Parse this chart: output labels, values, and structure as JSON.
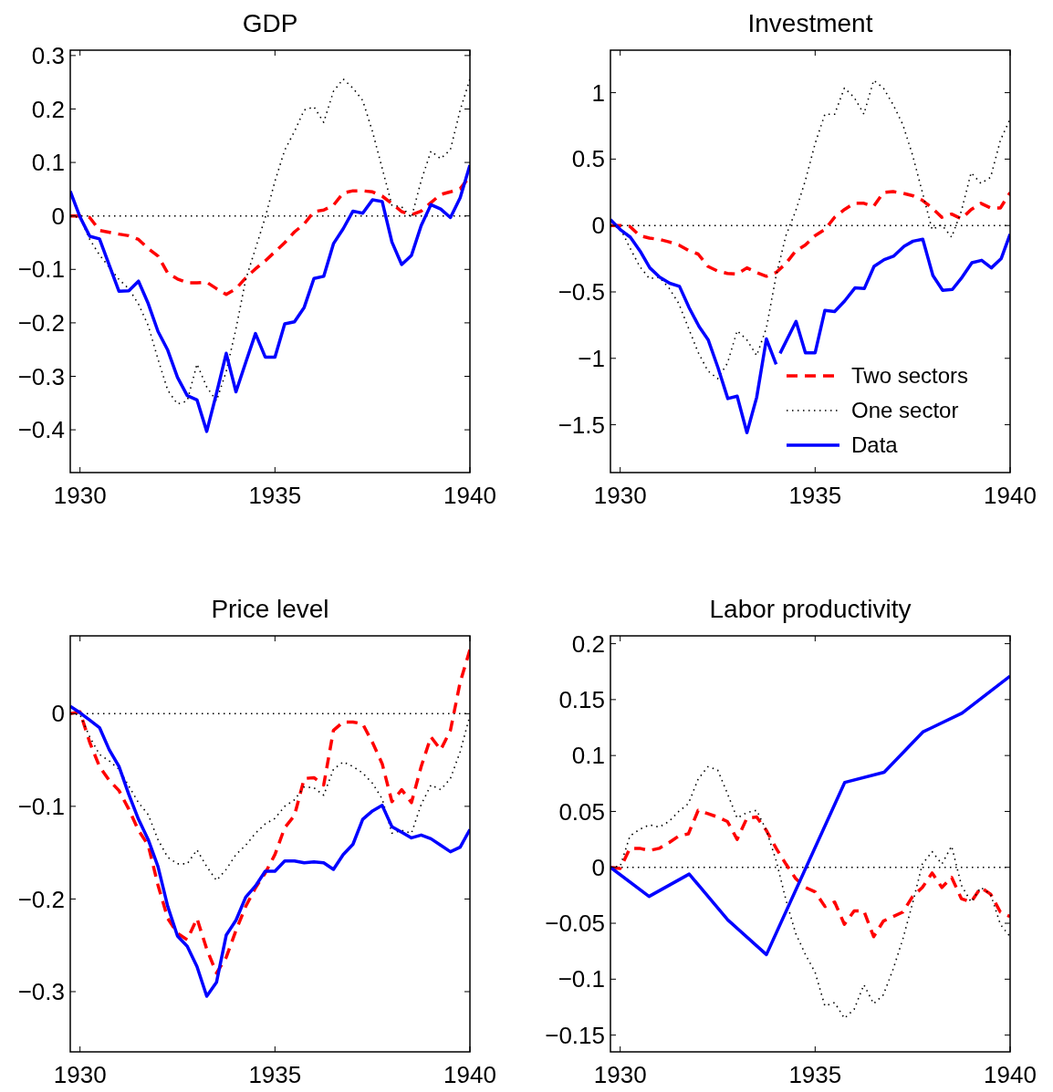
{
  "chart_data": [
    {
      "type": "line",
      "title": "GDP",
      "x": [
        1929.75,
        1930,
        1930.25,
        1930.5,
        1931,
        1931.25,
        1931.5,
        1931.75,
        1932,
        1932.25,
        1932.5,
        1932.75,
        1933,
        1933.25,
        1933.5,
        1933.75,
        1934,
        1934.25,
        1934.5,
        1934.75,
        1935,
        1935.25,
        1935.5,
        1935.75,
        1936,
        1936.25,
        1936.5,
        1936.75,
        1937,
        1937.25,
        1937.5,
        1937.75,
        1938,
        1938.25,
        1938.5,
        1938.75,
        1939,
        1939.25,
        1939.5,
        1939.75,
        1940
      ],
      "xlim": [
        1929.75,
        1940
      ],
      "xticks": [
        1930,
        1935,
        1940
      ],
      "ylim": [
        -0.48,
        0.31
      ],
      "yticks": [
        -0.4,
        -0.3,
        -0.2,
        -0.1,
        0,
        0.1,
        0.2,
        0.3
      ],
      "legend": false,
      "ref_lines": [
        {
          "axis": "y",
          "value": 0,
          "color": "#000000",
          "line_style": "dotted"
        }
      ],
      "series": [
        {
          "color": "#ff0000",
          "line_style": "dashed",
          "values": [
            0,
            0,
            -0.003,
            -0.027,
            -0.034,
            -0.037,
            -0.044,
            -0.061,
            -0.075,
            -0.107,
            -0.118,
            -0.125,
            -0.125,
            -0.124,
            -0.136,
            -0.147,
            -0.136,
            -0.116,
            -0.099,
            -0.084,
            -0.067,
            -0.05,
            -0.03,
            -0.015,
            0.008,
            0.011,
            0.02,
            0.043,
            0.047,
            0.047,
            0.045,
            0.037,
            0.023,
            0.008,
            0.002,
            0.009,
            0.025,
            0.04,
            0.045,
            0.051,
            0.074
          ]
        },
        {
          "color": "#000000",
          "line_style": "dotted",
          "values": [
            0,
            -0.003,
            -0.044,
            -0.073,
            -0.119,
            -0.136,
            -0.165,
            -0.205,
            -0.268,
            -0.326,
            -0.352,
            -0.346,
            -0.277,
            -0.32,
            -0.346,
            -0.291,
            -0.211,
            -0.119,
            -0.061,
            -0.003,
            0.065,
            0.123,
            0.158,
            0.198,
            0.204,
            0.175,
            0.233,
            0.256,
            0.239,
            0.216,
            0.158,
            0.089,
            0.02,
            0.017,
            -0.003,
            0.066,
            0.121,
            0.107,
            0.124,
            0.198,
            0.256
          ]
        },
        {
          "color": "#0000ff",
          "line_style": "solid",
          "values": [
            0.046,
            -0.002,
            -0.038,
            -0.043,
            -0.141,
            -0.14,
            -0.122,
            -0.164,
            -0.216,
            -0.251,
            -0.302,
            -0.336,
            -0.344,
            -0.403,
            -0.332,
            -0.257,
            -0.329,
            -0.274,
            -0.22,
            -0.264,
            -0.264,
            -0.202,
            -0.198,
            -0.171,
            -0.117,
            -0.113,
            -0.052,
            -0.024,
            0.009,
            0.005,
            0.03,
            0.027,
            -0.049,
            -0.091,
            -0.074,
            -0.018,
            0.021,
            0.013,
            -0.003,
            0.034,
            0.095
          ]
        }
      ]
    },
    {
      "type": "line",
      "title": "Investment",
      "x": [
        1929.75,
        1930,
        1930.25,
        1930.5,
        1930.75,
        1931,
        1931.25,
        1931.5,
        1931.75,
        1932,
        1932.25,
        1932.5,
        1932.75,
        1933,
        1933.25,
        1933.5,
        1933.75,
        1934,
        1934.25,
        1934.5,
        1934.75,
        1935,
        1935.25,
        1935.5,
        1935.75,
        1936,
        1936.25,
        1936.5,
        1936.75,
        1937,
        1937.25,
        1937.5,
        1937.75,
        1938,
        1938.25,
        1938.5,
        1938.75,
        1939,
        1939.25,
        1939.5,
        1939.75,
        1940
      ],
      "xlim": [
        1929.75,
        1940
      ],
      "xticks": [
        1930,
        1935,
        1940
      ],
      "ylim": [
        -1.86,
        1.32
      ],
      "yticks": [
        -1.5,
        -1,
        -0.5,
        0,
        0.5,
        1
      ],
      "legend": "bottom right",
      "ref_lines": [
        {
          "axis": "y",
          "value": 0,
          "color": "#000000",
          "line_style": "dotted"
        }
      ],
      "series": [
        {
          "name": "Two sectors",
          "color": "#ff0000",
          "line_style": "dashed",
          "values": [
            0,
            0,
            -0.007,
            -0.076,
            -0.095,
            -0.104,
            -0.123,
            -0.146,
            -0.188,
            -0.215,
            -0.308,
            -0.343,
            -0.361,
            -0.366,
            -0.319,
            -0.354,
            -0.382,
            -0.354,
            -0.285,
            -0.192,
            -0.146,
            -0.076,
            -0.03,
            0.062,
            0.12,
            0.167,
            0.167,
            0.144,
            0.248,
            0.255,
            0.243,
            0.225,
            0.19,
            0.132,
            0.062,
            0.086,
            0.051,
            0.12,
            0.167,
            0.132,
            0.132,
            0.248
          ]
        },
        {
          "name": "One sector",
          "color": "#000000",
          "line_style": "dotted",
          "values": [
            0,
            -0.019,
            -0.169,
            -0.308,
            -0.4,
            -0.389,
            -0.47,
            -0.586,
            -0.771,
            -0.956,
            -1.095,
            -1.153,
            -1.037,
            -0.792,
            -0.861,
            -0.979,
            -0.771,
            -0.377,
            -0.076,
            0.109,
            0.34,
            0.618,
            0.838,
            0.838,
            1.035,
            0.965,
            0.838,
            1.093,
            1.035,
            0.91,
            0.759,
            0.528,
            0.25,
            -0.03,
            0.005,
            -0.088,
            0.109,
            0.398,
            0.317,
            0.363,
            0.641,
            0.803
          ]
        },
        {
          "name": "Data",
          "color": "#0000ff",
          "line_style": "solid",
          "x": [
            1929.75,
            1930,
            1930.26,
            1930.51,
            1930.76,
            1931.01,
            1931.27,
            1931.52,
            1931.77,
            1932.02,
            1932.26,
            1932.51,
            1932.76,
            1933,
            1933.25,
            1933.5,
            1933.75,
            1934,
            1934.05,
            1934.1,
            1934.51,
            1934.75,
            1935,
            1935.25,
            1935.5,
            1935.76,
            1936.02,
            1936.26,
            1936.51,
            1936.77,
            1937.02,
            1937.28,
            1937.51,
            1937.76,
            1938.02,
            1938.27,
            1938.52,
            1938.77,
            1939.02,
            1939.27,
            1939.52,
            1939.77,
            1940
          ],
          "values": [
            0.044,
            -0.03,
            -0.088,
            -0.192,
            -0.319,
            -0.389,
            -0.435,
            -0.458,
            -0.62,
            -0.759,
            -0.863,
            -1.072,
            -1.303,
            -1.285,
            -1.56,
            -1.294,
            -0.854,
            -1.046,
            null,
            -0.963,
            -0.722,
            -0.958,
            -0.958,
            -0.639,
            -0.648,
            -0.567,
            -0.47,
            -0.475,
            -0.308,
            -0.257,
            -0.229,
            -0.157,
            -0.118,
            -0.104,
            -0.377,
            -0.488,
            -0.481,
            -0.389,
            -0.28,
            -0.262,
            -0.319,
            -0.25,
            -0.065
          ]
        }
      ]
    },
    {
      "type": "line",
      "title": "Price level",
      "x": [
        1929.75,
        1930,
        1930.25,
        1930.5,
        1930.75,
        1931,
        1931.25,
        1931.5,
        1931.75,
        1932,
        1932.25,
        1932.5,
        1932.75,
        1933,
        1933.25,
        1933.5,
        1933.75,
        1934,
        1934.25,
        1934.5,
        1934.75,
        1935,
        1935.25,
        1935.5,
        1935.75,
        1936,
        1936.25,
        1936.5,
        1936.75,
        1937,
        1937.25,
        1937.5,
        1937.75,
        1938,
        1938.25,
        1938.5,
        1938.75,
        1939,
        1939.25,
        1939.5,
        1939.75,
        1940
      ],
      "xlim": [
        1929.75,
        1940
      ],
      "xticks": [
        1930,
        1935,
        1940
      ],
      "ylim": [
        -0.365,
        0.084
      ],
      "yticks": [
        -0.3,
        -0.2,
        -0.1,
        0
      ],
      "legend": false,
      "ref_lines": [
        {
          "axis": "y",
          "value": 0,
          "color": "#000000",
          "line_style": "dotted"
        }
      ],
      "series": [
        {
          "color": "#ff0000",
          "line_style": "dashed",
          "values": [
            0,
            0.002,
            -0.031,
            -0.057,
            -0.072,
            -0.083,
            -0.103,
            -0.126,
            -0.142,
            -0.185,
            -0.221,
            -0.237,
            -0.244,
            -0.221,
            -0.254,
            -0.28,
            -0.263,
            -0.234,
            -0.208,
            -0.188,
            -0.172,
            -0.152,
            -0.123,
            -0.11,
            -0.07,
            -0.069,
            -0.077,
            -0.018,
            -0.009,
            -0.009,
            -0.011,
            -0.031,
            -0.054,
            -0.095,
            -0.082,
            -0.096,
            -0.057,
            -0.025,
            -0.039,
            -0.018,
            0.034,
            0.069
          ]
        },
        {
          "color": "#000000",
          "line_style": "dotted",
          "values": [
            0,
            -0.001,
            -0.025,
            -0.044,
            -0.051,
            -0.06,
            -0.078,
            -0.096,
            -0.109,
            -0.136,
            -0.155,
            -0.162,
            -0.162,
            -0.147,
            -0.165,
            -0.18,
            -0.168,
            -0.152,
            -0.142,
            -0.129,
            -0.119,
            -0.113,
            -0.1,
            -0.093,
            -0.079,
            -0.08,
            -0.088,
            -0.06,
            -0.052,
            -0.057,
            -0.064,
            -0.075,
            -0.092,
            -0.129,
            -0.126,
            -0.129,
            -0.098,
            -0.077,
            -0.082,
            -0.07,
            -0.041,
            -0.002
          ]
        },
        {
          "color": "#0000ff",
          "line_style": "solid",
          "values": [
            0.008,
            0.001,
            -0.007,
            -0.015,
            -0.039,
            -0.057,
            -0.087,
            -0.114,
            -0.136,
            -0.165,
            -0.208,
            -0.24,
            -0.251,
            -0.273,
            -0.305,
            -0.29,
            -0.239,
            -0.223,
            -0.198,
            -0.186,
            -0.17,
            -0.17,
            -0.159,
            -0.159,
            -0.161,
            -0.16,
            -0.161,
            -0.168,
            -0.152,
            -0.141,
            -0.114,
            -0.105,
            -0.099,
            -0.122,
            -0.128,
            -0.134,
            -0.131,
            -0.135,
            -0.142,
            -0.149,
            -0.144,
            -0.125
          ]
        }
      ]
    },
    {
      "type": "line",
      "title": "Labor productivity",
      "x": [
        1929.75,
        1930,
        1930.25,
        1930.5,
        1930.75,
        1931,
        1931.25,
        1931.5,
        1931.75,
        1932,
        1932.25,
        1932.5,
        1932.75,
        1933,
        1933.25,
        1933.5,
        1933.75,
        1934,
        1934.25,
        1934.5,
        1934.75,
        1935,
        1935.25,
        1935.5,
        1935.75,
        1936,
        1936.25,
        1936.5,
        1936.75,
        1937,
        1937.25,
        1937.5,
        1937.75,
        1938,
        1938.25,
        1938.5,
        1938.75,
        1939,
        1939.25,
        1939.5,
        1939.75,
        1940
      ],
      "xlim": [
        1929.75,
        1940
      ],
      "xticks": [
        1930,
        1935,
        1940
      ],
      "ylim": [
        -0.165,
        0.207
      ],
      "yticks": [
        -0.15,
        -0.1,
        -0.05,
        0,
        0.05,
        0.1,
        0.15,
        0.2
      ],
      "legend": false,
      "ref_lines": [
        {
          "axis": "y",
          "value": 0,
          "color": "#000000",
          "line_style": "dotted"
        }
      ],
      "series": [
        {
          "color": "#ff0000",
          "line_style": "dashed",
          "values": [
            0,
            -0.001,
            0.017,
            0.017,
            0.015,
            0.017,
            0.022,
            0.028,
            0.03,
            0.051,
            0.048,
            0.045,
            0.041,
            0.025,
            0.044,
            0.045,
            0.033,
            0.017,
            0.003,
            -0.01,
            -0.018,
            -0.022,
            -0.035,
            -0.031,
            -0.051,
            -0.039,
            -0.039,
            -0.062,
            -0.048,
            -0.044,
            -0.04,
            -0.026,
            -0.018,
            -0.005,
            -0.018,
            -0.009,
            -0.028,
            -0.031,
            -0.018,
            -0.024,
            -0.04,
            -0.044
          ]
        },
        {
          "color": "#000000",
          "line_style": "dotted",
          "values": [
            0,
            0.001,
            0.028,
            0.034,
            0.038,
            0.036,
            0.041,
            0.05,
            0.057,
            0.079,
            0.09,
            0.087,
            0.066,
            0.044,
            0.049,
            0.051,
            0.033,
            0.006,
            -0.029,
            -0.059,
            -0.078,
            -0.094,
            -0.124,
            -0.121,
            -0.135,
            -0.127,
            -0.105,
            -0.122,
            -0.114,
            -0.091,
            -0.064,
            -0.032,
            0.003,
            0.014,
            0.003,
            0.019,
            -0.016,
            -0.031,
            -0.018,
            -0.024,
            -0.051,
            -0.062
          ]
        },
        {
          "color": "#0000ff",
          "line_style": "solid",
          "x": [
            1929.75,
            1930.74,
            1931.77,
            1932.76,
            1933.75,
            1935.76,
            1936.77,
            1937.76,
            1938.77,
            1940
          ],
          "values": [
            0,
            -0.026,
            -0.006,
            -0.047,
            -0.078,
            0.076,
            0.085,
            0.121,
            0.138,
            0.171
          ]
        }
      ]
    }
  ]
}
